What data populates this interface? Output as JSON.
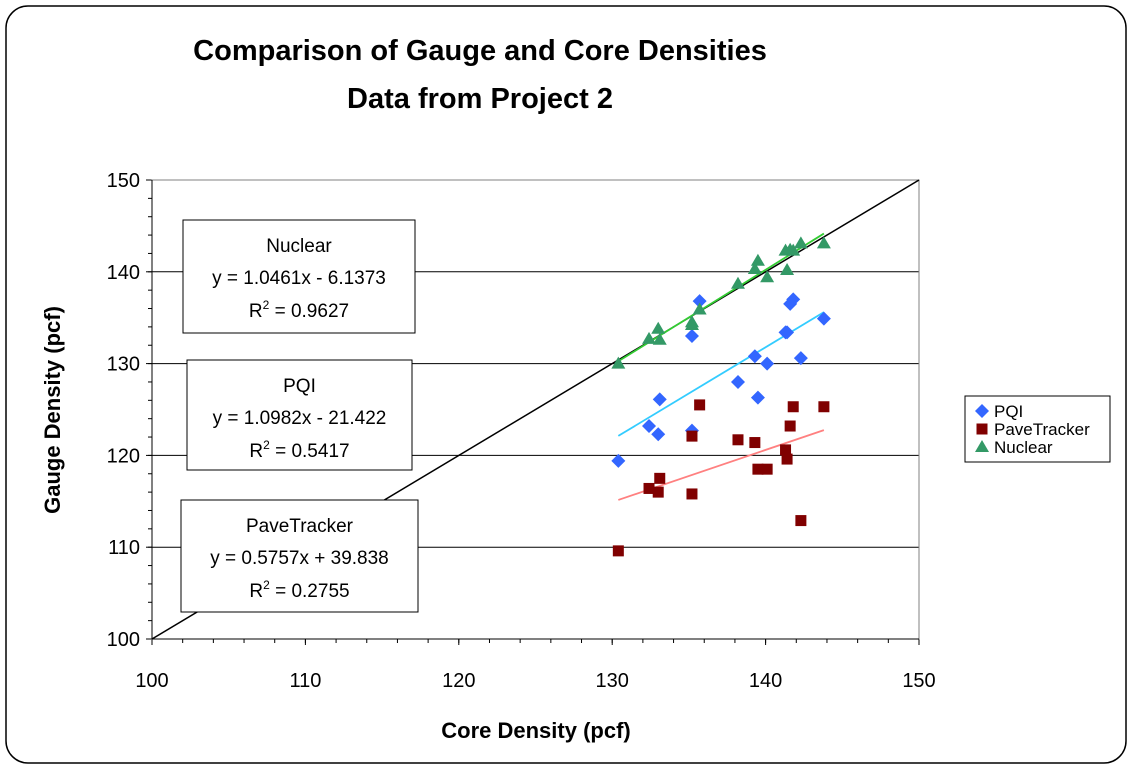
{
  "chart_data": {
    "type": "scatter",
    "title": [
      "Comparison of Gauge and Core Densities",
      "Data from Project 2"
    ],
    "xlabel": "Core Density (pcf)",
    "ylabel": "Gauge Density (pcf)",
    "x": [
      130.4,
      132.4,
      133,
      133.1,
      135.2,
      135.2,
      135.7,
      138.2,
      139.3,
      139.5,
      140.1,
      141.3,
      141.4,
      141.6,
      141.8,
      142.3,
      143.8
    ],
    "series": [
      {
        "name": "PQI",
        "color": "#3366ff",
        "marker": "diamond",
        "trend_color": "#33ccff",
        "values": [
          119.4,
          123.2,
          122.3,
          126.1,
          133.0,
          122.7,
          136.8,
          128.0,
          130.8,
          126.3,
          130.0,
          133.4,
          133.4,
          136.5,
          137.0,
          130.6,
          134.9
        ]
      },
      {
        "name": "PaveTracker",
        "color": "#800000",
        "marker": "square",
        "trend_color": "#ff8080",
        "values": [
          109.6,
          116.4,
          116.0,
          117.5,
          115.8,
          122.1,
          125.5,
          121.7,
          121.4,
          118.5,
          118.5,
          120.6,
          119.6,
          123.2,
          125.3,
          112.9,
          125.3
        ]
      },
      {
        "name": "Nuclear",
        "color": "#339966",
        "marker": "triangle",
        "trend_color": "#33cc33",
        "values": [
          130.0,
          132.7,
          133.8,
          132.6,
          134.5,
          134.2,
          135.9,
          138.7,
          140.3,
          141.2,
          139.4,
          142.3,
          140.2,
          142.4,
          142.3,
          143.1,
          143.1
        ]
      }
    ],
    "trendline": true,
    "equality_line": true,
    "annotations": [
      {
        "name": "Nuclear",
        "equation": "y = 1.0461x - 6.1373",
        "r2": {
          "base": "R",
          "sup": "2",
          "rest": " = 0.9627"
        }
      },
      {
        "name": "PQI",
        "equation": "y = 1.0982x - 21.422",
        "r2": {
          "base": "R",
          "sup": "2",
          "rest": " = 0.5417"
        }
      },
      {
        "name": "PaveTracker",
        "equation": "y = 0.5757x + 39.838",
        "r2": {
          "base": "R",
          "sup": "2",
          "rest": " = 0.2755"
        }
      }
    ],
    "xlim": [
      100,
      150
    ],
    "xticks": [
      100,
      110,
      120,
      130,
      140,
      150
    ],
    "ylim": [
      100,
      150
    ],
    "yticks": [
      100,
      110,
      120,
      130,
      140,
      150
    ],
    "grid": true,
    "legend": "right"
  }
}
